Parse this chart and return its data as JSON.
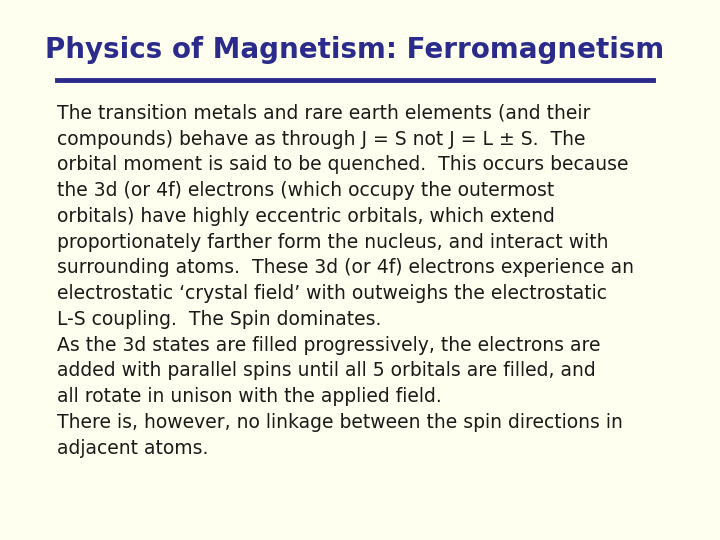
{
  "background_color": "#FFFFF0",
  "title": "Physics of Magnetism: Ferromagnetism",
  "title_color": "#2B2B8C",
  "title_fontsize": 20,
  "line_color": "#2B2B8C",
  "text_color": "#1a1a1a",
  "text_fontsize": 13.5,
  "body_text": "The transition metals and rare earth elements (and their\ncompounds) behave as through J = S not J = L ± S.  The\norbital moment is said to be quenched.  This occurs because\nthe 3d (or 4f) electrons (which occupy the outermost\norbitals) have highly eccentric orbitals, which extend\nproportionately farther form the nucleus, and interact with\nsurrounding atoms.  These 3d (or 4f) electrons experience an\nelectrostatic ‘crystal field’ with outweighs the electrostatic\nL-S coupling.  The Spin dominates.\nAs the 3d states are filled progressively, the electrons are\nadded with parallel spins until all 5 orbitals are filled, and\nall rotate in unison with the applied field.\nThere is, however, no linkage between the spin directions in\nadjacent atoms."
}
